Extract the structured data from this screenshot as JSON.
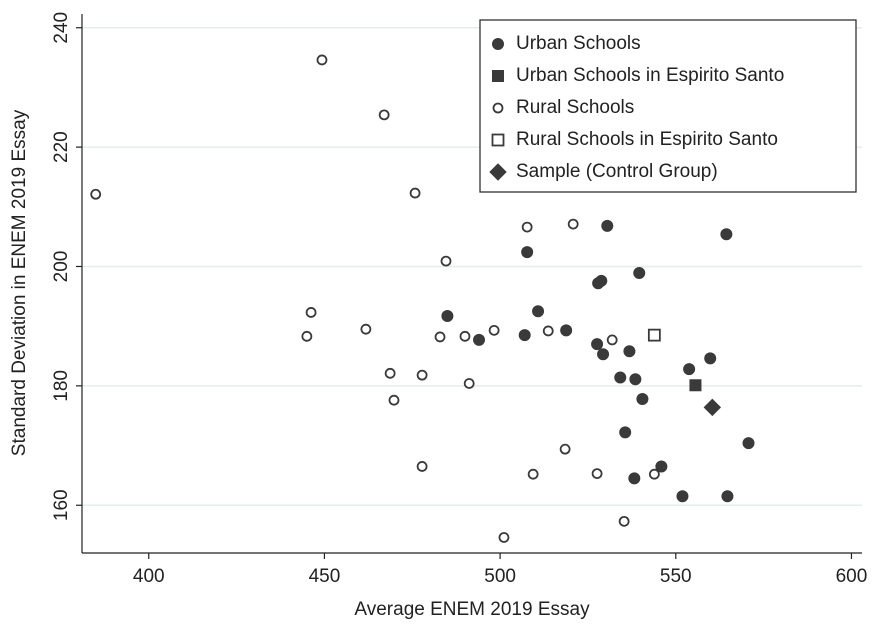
{
  "chart_data": {
    "type": "scatter",
    "x_label": "Average ENEM 2019 Essay",
    "y_label": "Standard Deviation in ENEM 2019 Essay",
    "xlim": [
      381,
      603
    ],
    "ylim": [
      152,
      242.3
    ],
    "xticks": [
      400,
      450,
      500,
      550,
      600
    ],
    "yticks": [
      160,
      180,
      200,
      220,
      240
    ],
    "grid": true,
    "legend": "top-right",
    "series": [
      {
        "name": "Urban Schools",
        "marker": "circle",
        "filled": true,
        "color": "#3a3a3a",
        "x": [
          485,
          494,
          507,
          507.7,
          510.8,
          518.8,
          530.5,
          528.8,
          527.9,
          539.6,
          564.4,
          527.6,
          529.3,
          536.8,
          534.2,
          538.5,
          540.5,
          553.8,
          559.8,
          535.6,
          545.9,
          538.2,
          570.7,
          551.9,
          564.7
        ],
        "y": [
          191.7,
          187.7,
          188.5,
          202.4,
          192.5,
          189.3,
          206.8,
          197.6,
          197.2,
          198.9,
          205.4,
          187,
          185.3,
          185.8,
          181.4,
          181.1,
          177.8,
          182.8,
          184.6,
          172.2,
          166.5,
          164.5,
          170.4,
          161.5,
          161.5
        ]
      },
      {
        "name": "Urban Schools in Espirito Santo",
        "marker": "square",
        "filled": true,
        "color": "#3a3a3a",
        "x": [
          555.6
        ],
        "y": [
          180.1
        ]
      },
      {
        "name": "Rural Schools",
        "marker": "circle",
        "filled": false,
        "color": "#3a3a3a",
        "x": [
          384.9,
          449.3,
          467,
          475.8,
          484.6,
          446.2,
          445,
          461.8,
          468.7,
          469.8,
          477.8,
          482.9,
          490,
          498.3,
          491.2,
          507.7,
          520.8,
          513.7,
          531.9,
          477.8,
          509.4,
          518.5,
          527.6,
          543.9,
          535.3,
          501.1
        ],
        "y": [
          212.1,
          234.6,
          225.4,
          212.3,
          200.9,
          192.3,
          188.3,
          189.5,
          182.1,
          177.6,
          181.8,
          188.2,
          188.3,
          189.3,
          180.4,
          206.6,
          207.1,
          189.2,
          187.7,
          166.5,
          165.2,
          169.4,
          165.3,
          165.2,
          157.3,
          154.6
        ]
      },
      {
        "name": "Rural Schools in Espirito Santo",
        "marker": "square",
        "filled": false,
        "color": "#3a3a3a",
        "x": [
          543.9
        ],
        "y": [
          188.5
        ]
      },
      {
        "name": "Sample (Control Group)",
        "marker": "diamond",
        "filled": true,
        "color": "#3a3a3a",
        "x": [
          560.4
        ],
        "y": [
          176.4
        ]
      }
    ]
  }
}
